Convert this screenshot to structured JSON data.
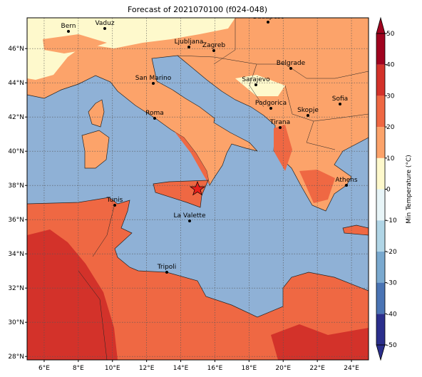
{
  "title": "Forecast of 2021070100 (f024-048)",
  "map": {
    "xlim": [
      5,
      25
    ],
    "ylim": [
      27.8,
      47.8
    ],
    "xticks": [
      {
        "value": 6,
        "label": "6°E"
      },
      {
        "value": 8,
        "label": "8°E"
      },
      {
        "value": 10,
        "label": "10°E"
      },
      {
        "value": 12,
        "label": "12°E"
      },
      {
        "value": 14,
        "label": "14°E"
      },
      {
        "value": 16,
        "label": "16°E"
      },
      {
        "value": 18,
        "label": "18°E"
      },
      {
        "value": 20,
        "label": "20°E"
      },
      {
        "value": 22,
        "label": "22°E"
      },
      {
        "value": 24,
        "label": "24°E"
      }
    ],
    "yticks": [
      {
        "value": 28,
        "label": "28°N"
      },
      {
        "value": 30,
        "label": "30°N"
      },
      {
        "value": 32,
        "label": "32°N"
      },
      {
        "value": 34,
        "label": "34°N"
      },
      {
        "value": 36,
        "label": "36°N"
      },
      {
        "value": 38,
        "label": "38°N"
      },
      {
        "value": 40,
        "label": "40°N"
      },
      {
        "value": 42,
        "label": "42°N"
      },
      {
        "value": 44,
        "label": "44°N"
      },
      {
        "value": 46,
        "label": "46°N"
      }
    ],
    "cities": [
      "Bern",
      "Vaduz",
      "Budapest",
      "Ljubljana",
      "Zagreb",
      "Belgrade",
      "San Marino",
      "Sarajevo",
      "Sofia",
      "Podgorica",
      "Skopje",
      "Roma",
      "Tirana",
      "Athens",
      "Tunis",
      "La Valette",
      "Tripoli"
    ]
  },
  "colorbar": {
    "label": "Min Temperature (°C)",
    "lim": [
      -50,
      50
    ],
    "ticks": [
      -50,
      -40,
      -30,
      -20,
      -10,
      0,
      10,
      20,
      30,
      40,
      50
    ],
    "colors": [
      "#2b2f8c",
      "#4a74b4",
      "#7aa9cf",
      "#b0d5e6",
      "#e8f5f8",
      "#fef9cc",
      "#fca36a",
      "#ef6843",
      "#d3322a",
      "#a0031f"
    ]
  }
}
